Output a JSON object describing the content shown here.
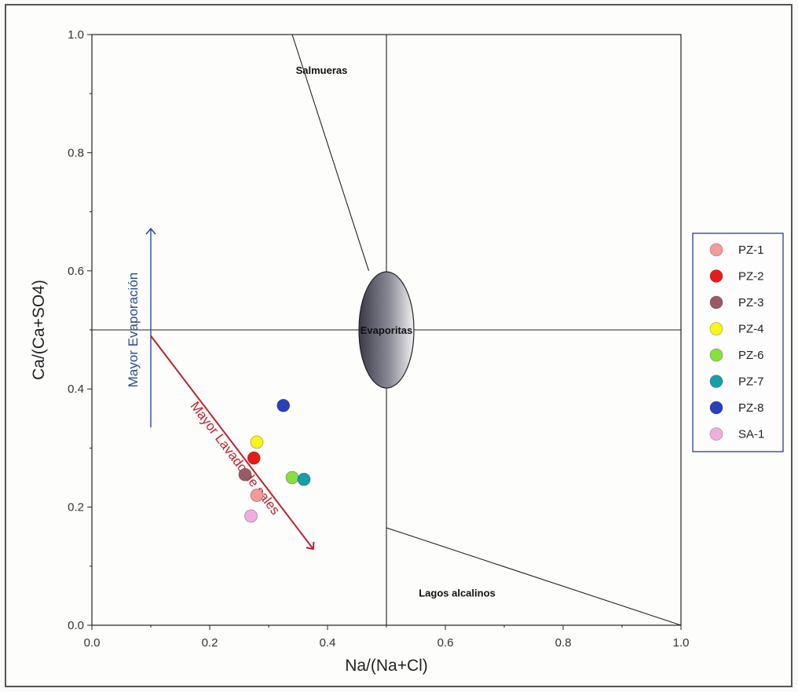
{
  "colors": {
    "axis": "#222222",
    "evaporation_arrow": "#2b4c8c",
    "washing_arrow": "#c0202a",
    "legend_border": "#2b3f8f"
  },
  "chart_data": {
    "type": "scatter",
    "title": "",
    "xlabel": "Na/(Na+Cl)",
    "ylabel": "Ca/(Ca+SO4)",
    "xlim": [
      0.0,
      1.0
    ],
    "ylim": [
      0.0,
      1.0
    ],
    "xticks": [
      "0.0",
      "0.2",
      "0.4",
      "0.6",
      "0.8",
      "1.0"
    ],
    "yticks": [
      "0.0",
      "0.2",
      "0.4",
      "0.6",
      "0.8",
      "1.0"
    ],
    "grid": false,
    "legend_position": "right",
    "series": [
      {
        "name": "PZ-1",
        "color": "#f39a9a",
        "x": 0.28,
        "y": 0.22
      },
      {
        "name": "PZ-2",
        "color": "#e51c1c",
        "x": 0.275,
        "y": 0.283
      },
      {
        "name": "PZ-3",
        "color": "#9a5a64",
        "x": 0.26,
        "y": 0.255
      },
      {
        "name": "PZ-4",
        "color": "#f5f51a",
        "x": 0.28,
        "y": 0.31
      },
      {
        "name": "PZ-6",
        "color": "#88e040",
        "x": 0.34,
        "y": 0.25
      },
      {
        "name": "PZ-7",
        "color": "#14a0aa",
        "x": 0.36,
        "y": 0.247
      },
      {
        "name": "PZ-8",
        "color": "#2a3fb8",
        "x": 0.325,
        "y": 0.372
      },
      {
        "name": "SA-1",
        "color": "#f0aee0",
        "x": 0.27,
        "y": 0.185
      }
    ],
    "region_lines": [
      {
        "x": [
          0.0,
          1.0
        ],
        "y": [
          0.5,
          0.5
        ]
      },
      {
        "x": [
          0.5,
          0.5
        ],
        "y": [
          0.0,
          1.0
        ]
      },
      {
        "x": [
          0.34,
          0.47
        ],
        "y": [
          1.0,
          0.6
        ]
      },
      {
        "x": [
          0.5,
          1.0
        ],
        "y": [
          0.165,
          0.0
        ]
      }
    ],
    "regions": {
      "salmueras": "Salmueras",
      "evaporitas": "Evaporitas",
      "lagos": "Lagos alcalinos"
    },
    "annotations": {
      "evaporation": "Mayor Evaporación",
      "washing": "Mayor Lavado de sales"
    }
  }
}
